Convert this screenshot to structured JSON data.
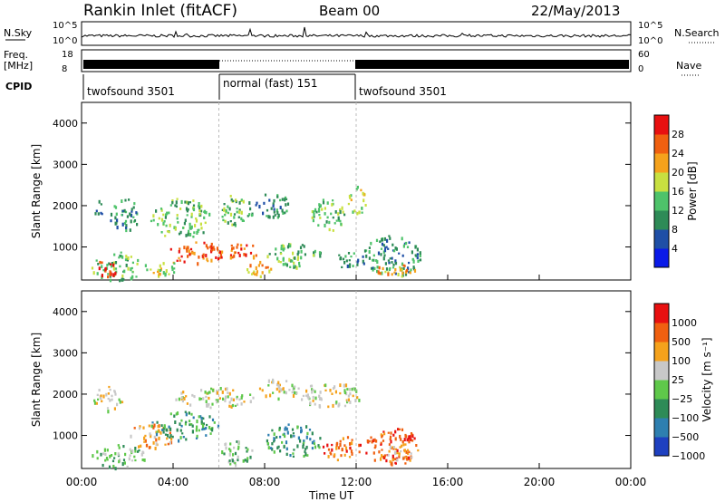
{
  "header": {
    "station": "Rankin Inlet (fitACF)",
    "beam": "Beam 00",
    "date": "22/May/2013"
  },
  "strips": {
    "nsky_label": "N.Sky",
    "nsearch_label": "N.Search",
    "freq_label_1": "Freq.",
    "freq_label_2": "[MHz]",
    "nave_label": "Nave",
    "cpid_label": "CPID",
    "log_ticks": [
      "10^5",
      "10^0"
    ],
    "freq_ticks": [
      "18",
      "8"
    ],
    "nave_ticks": [
      "60",
      "0"
    ]
  },
  "cpid_segments": [
    {
      "label": "twofsound 3501",
      "start": 0,
      "end": 6
    },
    {
      "label": "normal (fast) 151",
      "start": 6,
      "end": 12
    },
    {
      "label": "twofsound 3501",
      "start": 12,
      "end": 24
    }
  ],
  "chart_data": [
    {
      "type": "heatmap",
      "panel": "power",
      "xlabel": "Time UT",
      "ylabel": "Slant Range [km]",
      "xlim": [
        0,
        24
      ],
      "ylim": [
        200,
        4500
      ],
      "x_ticks": [
        "00:00",
        "04:00",
        "08:00",
        "12:00",
        "16:00",
        "20:00",
        "00:00"
      ],
      "y_ticks": [
        1000,
        2000,
        3000,
        4000
      ],
      "colorbar": {
        "label": "Power [dB]",
        "ticks": [
          4,
          8,
          12,
          16,
          20,
          24,
          28
        ],
        "range": [
          0,
          32
        ],
        "colors": [
          "#0a1ae8",
          "#1f4fa6",
          "#2e8b57",
          "#4ec36a",
          "#c8e040",
          "#f5a21c",
          "#f06010",
          "#e81010"
        ]
      },
      "regions": [
        {
          "t0": 0.5,
          "t1": 1.0,
          "r0": 1700,
          "r1": 2300,
          "level": 2
        },
        {
          "t0": 0.4,
          "t1": 2.8,
          "r0": 200,
          "r1": 900,
          "level": 3
        },
        {
          "t0": 0.5,
          "t1": 1.5,
          "r0": 250,
          "r1": 700,
          "level": 7
        },
        {
          "t0": 1.2,
          "t1": 2.5,
          "r0": 1400,
          "r1": 2200,
          "level": 2
        },
        {
          "t0": 2.8,
          "t1": 4.2,
          "r0": 300,
          "r1": 700,
          "level": 4
        },
        {
          "t0": 3.0,
          "t1": 5.6,
          "r0": 1200,
          "r1": 2200,
          "level": 3
        },
        {
          "t0": 3.8,
          "t1": 6.2,
          "r0": 600,
          "r1": 1200,
          "level": 6
        },
        {
          "t0": 6.0,
          "t1": 7.5,
          "r0": 1500,
          "r1": 2300,
          "level": 3
        },
        {
          "t0": 6.2,
          "t1": 7.8,
          "r0": 700,
          "r1": 1100,
          "level": 6
        },
        {
          "t0": 7.5,
          "t1": 9.0,
          "r0": 1700,
          "r1": 2400,
          "level": 2
        },
        {
          "t0": 8.0,
          "t1": 10.5,
          "r0": 500,
          "r1": 1100,
          "level": 3
        },
        {
          "t0": 7.2,
          "t1": 8.4,
          "r0": 300,
          "r1": 700,
          "level": 5
        },
        {
          "t0": 10.0,
          "t1": 11.5,
          "r0": 1400,
          "r1": 2200,
          "level": 3
        },
        {
          "t0": 11.6,
          "t1": 12.4,
          "r0": 1800,
          "r1": 2500,
          "level": 4
        },
        {
          "t0": 11.0,
          "t1": 12.2,
          "r0": 500,
          "r1": 900,
          "level": 2
        },
        {
          "t0": 12.2,
          "t1": 14.8,
          "r0": 300,
          "r1": 1300,
          "level": 2
        },
        {
          "t0": 12.8,
          "t1": 14.6,
          "r0": 300,
          "r1": 600,
          "level": 5
        }
      ]
    },
    {
      "type": "heatmap",
      "panel": "velocity",
      "xlabel": "Time UT",
      "ylabel": "Slant Range [km]",
      "xlim": [
        0,
        24
      ],
      "ylim": [
        200,
        4500
      ],
      "x_ticks": [
        "00:00",
        "04:00",
        "08:00",
        "12:00",
        "16:00",
        "20:00",
        "00:00"
      ],
      "y_ticks": [
        1000,
        2000,
        3000,
        4000
      ],
      "colorbar": {
        "label": "Velocity [m s⁻¹]",
        "ticks": [
          "1000",
          "500",
          "100",
          "25",
          "−25",
          "−100",
          "−500",
          "−1000"
        ],
        "colors": [
          "#1e40c0",
          "#2e7fb0",
          "#2e8b57",
          "#5fc84a",
          "#c8c8c8",
          "#f5a21c",
          "#f06010",
          "#e81010"
        ]
      },
      "regions": [
        {
          "t0": 0.4,
          "t1": 2.8,
          "r0": 200,
          "r1": 800,
          "level": 3
        },
        {
          "t0": 0.5,
          "t1": 1.8,
          "r0": 1600,
          "r1": 2200,
          "level": 4
        },
        {
          "t0": 2.0,
          "t1": 4.0,
          "r0": 700,
          "r1": 1300,
          "level": 5
        },
        {
          "t0": 3.0,
          "t1": 6.0,
          "r0": 900,
          "r1": 1600,
          "level": 2
        },
        {
          "t0": 4.0,
          "t1": 7.5,
          "r0": 1700,
          "r1": 2200,
          "level": 4
        },
        {
          "t0": 6.0,
          "t1": 7.5,
          "r0": 300,
          "r1": 900,
          "level": 3
        },
        {
          "t0": 7.5,
          "t1": 9.5,
          "r0": 1900,
          "r1": 2400,
          "level": 4
        },
        {
          "t0": 8.0,
          "t1": 10.5,
          "r0": 500,
          "r1": 1300,
          "level": 2
        },
        {
          "t0": 9.5,
          "t1": 12.2,
          "r0": 1700,
          "r1": 2300,
          "level": 4
        },
        {
          "t0": 10.5,
          "t1": 12.2,
          "r0": 400,
          "r1": 1000,
          "level": 6
        },
        {
          "t0": 12.3,
          "t1": 14.8,
          "r0": 300,
          "r1": 1200,
          "level": 6
        },
        {
          "t0": 13.0,
          "t1": 14.5,
          "r0": 400,
          "r1": 800,
          "level": 5
        }
      ]
    }
  ]
}
